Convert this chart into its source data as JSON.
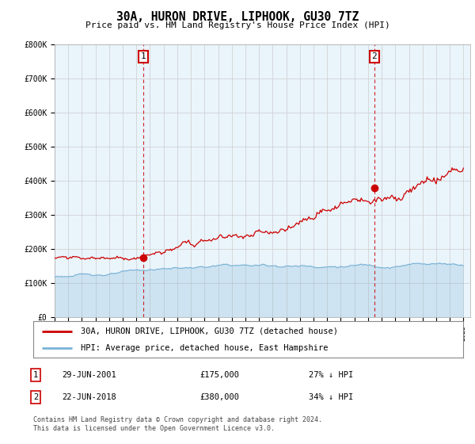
{
  "title": "30A, HURON DRIVE, LIPHOOK, GU30 7TZ",
  "subtitle": "Price paid vs. HM Land Registry's House Price Index (HPI)",
  "legend_entry1": "30A, HURON DRIVE, LIPHOOK, GU30 7TZ (detached house)",
  "legend_entry2": "HPI: Average price, detached house, East Hampshire",
  "annotation1_date": "29-JUN-2001",
  "annotation1_price": "£175,000",
  "annotation1_hpi": "27% ↓ HPI",
  "annotation2_date": "22-JUN-2018",
  "annotation2_price": "£380,000",
  "annotation2_hpi": "34% ↓ HPI",
  "footer": "Contains HM Land Registry data © Crown copyright and database right 2024.\nThis data is licensed under the Open Government Licence v3.0.",
  "ylim": [
    0,
    800000
  ],
  "yticks": [
    0,
    100000,
    200000,
    300000,
    400000,
    500000,
    600000,
    700000,
    800000
  ],
  "ytick_labels": [
    "£0",
    "£100K",
    "£200K",
    "£300K",
    "£400K",
    "£500K",
    "£600K",
    "£700K",
    "£800K"
  ],
  "hpi_color": "#7ab3d6",
  "hpi_fill_color": "#d6e9f5",
  "price_color": "#cc0000",
  "vline_color": "#cc0000",
  "grid_color": "#cccccc",
  "background_color": "#ffffff",
  "chart_bg_color": "#eaf4fb",
  "annotation_box_color": "#cc0000",
  "point1_x": 2001.49,
  "point1_y": 175000,
  "point2_x": 2018.47,
  "point2_y": 380000,
  "xlim_start": 1995,
  "xlim_end": 2025.5
}
